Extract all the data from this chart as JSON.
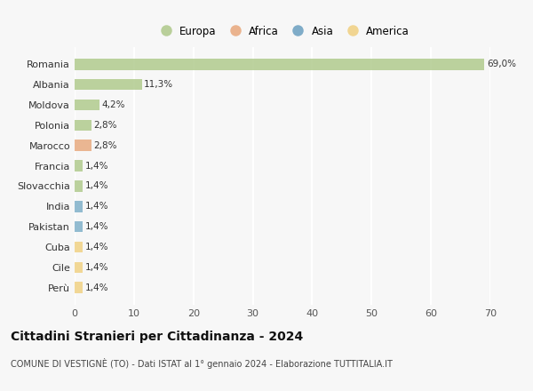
{
  "countries": [
    "Romania",
    "Albania",
    "Moldova",
    "Polonia",
    "Marocco",
    "Francia",
    "Slovacchia",
    "India",
    "Pakistan",
    "Cuba",
    "Cile",
    "Perù"
  ],
  "values": [
    69.0,
    11.3,
    4.2,
    2.8,
    2.8,
    1.4,
    1.4,
    1.4,
    1.4,
    1.4,
    1.4,
    1.4
  ],
  "labels": [
    "69,0%",
    "11,3%",
    "4,2%",
    "2,8%",
    "2,8%",
    "1,4%",
    "1,4%",
    "1,4%",
    "1,4%",
    "1,4%",
    "1,4%",
    "1,4%"
  ],
  "colors": [
    "#aec98a",
    "#aec98a",
    "#aec98a",
    "#aec98a",
    "#e8a87c",
    "#aec98a",
    "#aec98a",
    "#7caec8",
    "#7caec8",
    "#f0d080",
    "#f0d080",
    "#f0d080"
  ],
  "legend_labels": [
    "Europa",
    "Africa",
    "Asia",
    "America"
  ],
  "legend_colors": [
    "#aec98a",
    "#e8a87c",
    "#6a9fc0",
    "#f0d080"
  ],
  "title": "Cittadini Stranieri per Cittadinanza - 2024",
  "subtitle": "COMUNE DI VESTIGNÈ (TO) - Dati ISTAT al 1° gennaio 2024 - Elaborazione TUTTITALIA.IT",
  "xlim": [
    0,
    70
  ],
  "xticks": [
    0,
    10,
    20,
    30,
    40,
    50,
    60,
    70
  ],
  "background_color": "#f7f7f7",
  "grid_color": "#ffffff",
  "bar_height": 0.55
}
